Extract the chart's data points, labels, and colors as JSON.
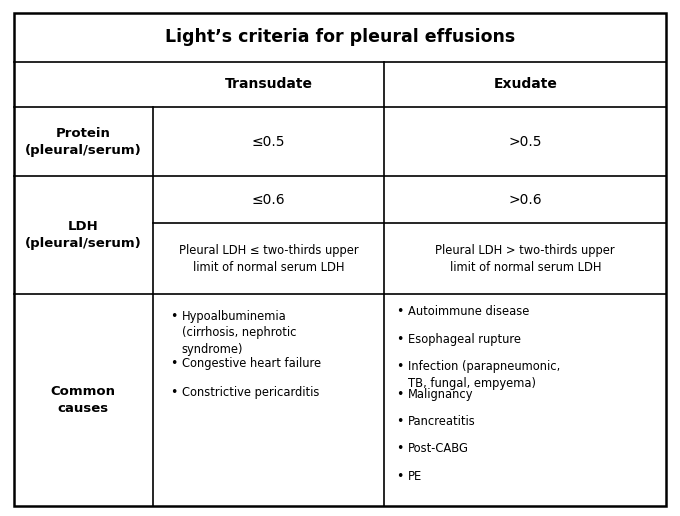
{
  "title": "Light’s criteria for pleural effusions",
  "background_color": "#ffffff",
  "border_color": "#000000",
  "transudate_header": "Transudate",
  "exudate_header": "Exudate",
  "protein_label": "Protein\n(pleural/serum)",
  "protein_transudate": "≤0.5",
  "protein_exudate": ">0.5",
  "ldh_label": "LDH\n(pleural/serum)",
  "ldh_transudate_top": "≤0.6",
  "ldh_exudate_top": ">0.6",
  "ldh_transudate_bottom": "Pleural LDH ≤ two-thirds upper\nlimit of normal serum LDH",
  "ldh_exudate_bottom": "Pleural LDH > two-thirds upper\nlimit of normal serum LDH",
  "causes_label": "Common\ncauses",
  "transudate_bullets": [
    "Hypoalbuminemia\n(cirrhosis, nephrotic\nsyndrome)",
    "Congestive heart failure",
    "Constrictive pericarditis"
  ],
  "exudate_bullets": [
    "Autoimmune disease",
    "Esophageal rupture",
    "Infection (parapneumonic,\nTB, fungal, empyema)",
    "Malignancy",
    "Pancreatitis",
    "Post-CABG",
    "PE"
  ]
}
